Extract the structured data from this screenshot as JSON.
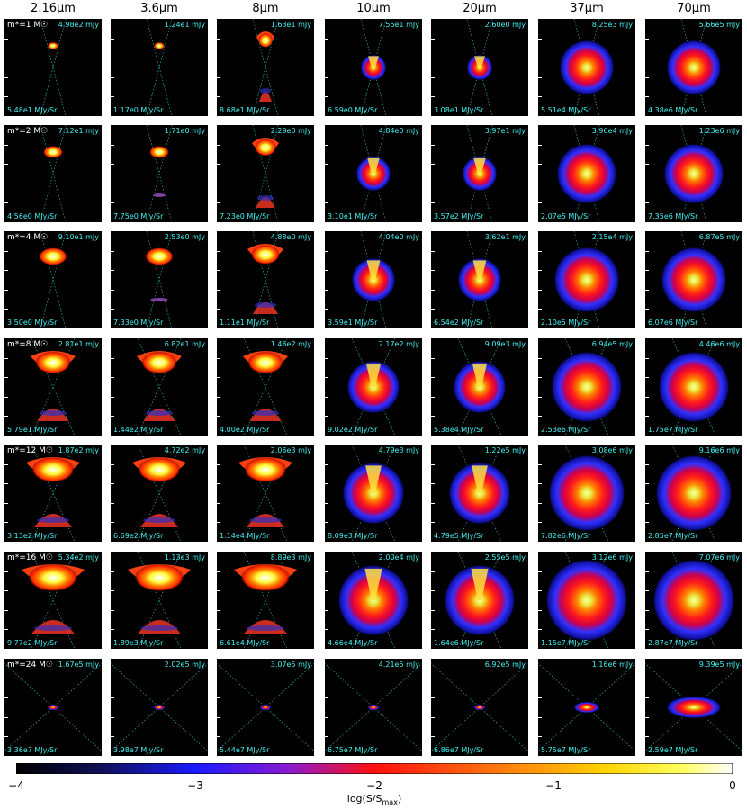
{
  "columns": [
    "2.16μm",
    "3.6μm",
    "8μm",
    "10μm",
    "20μm",
    "37μm",
    "70μm"
  ],
  "rows": [
    {
      "mass": "m*=1 M☉",
      "panels": [
        {
          "flux": "4.98e2 mJy",
          "surf": "5.48e1 MJy/Sr",
          "kind": "dot"
        },
        {
          "flux": "1.24e1 mJy",
          "surf": "1.17e0 MJy/Sr",
          "kind": "dot"
        },
        {
          "flux": "1.63e1 mJy",
          "surf": "8.68e1 MJy/Sr",
          "kind": "bipolar"
        },
        {
          "flux": "7.55e1 mJy",
          "surf": "6.59e0 MJy/Sr",
          "kind": "ring"
        },
        {
          "flux": "2.60e0 mJy",
          "surf": "3.08e1 MJy/Sr",
          "kind": "ring"
        },
        {
          "flux": "8.25e3 mJy",
          "surf": "5.51e4 MJy/Sr",
          "kind": "ring"
        },
        {
          "flux": "5.66e5 mJy",
          "surf": "4.38e6 MJy/Sr",
          "kind": "ring"
        }
      ]
    },
    {
      "mass": "m*=2 M☉",
      "panels": [
        {
          "flux": "7.12e1 mJy",
          "surf": "4.56e0 MJy/Sr",
          "kind": "dot"
        },
        {
          "flux": "1.71e0 mJy",
          "surf": "7.75e0 MJy/Sr",
          "kind": "dot"
        },
        {
          "flux": "2.29e0 mJy",
          "surf": "7.23e0 MJy/Sr",
          "kind": "bipolar"
        },
        {
          "flux": "4.84e0 mJy",
          "surf": "3.10e1 MJy/Sr",
          "kind": "ring"
        },
        {
          "flux": "3.97e1 mJy",
          "surf": "3.57e2 MJy/Sr",
          "kind": "ring"
        },
        {
          "flux": "3.96e4 mJy",
          "surf": "2.07e5 MJy/Sr",
          "kind": "ring"
        },
        {
          "flux": "1.23e6 mJy",
          "surf": "7.35e6 MJy/Sr",
          "kind": "ring"
        }
      ]
    },
    {
      "mass": "m*=4 M☉",
      "panels": [
        {
          "flux": "9.10e1 mJy",
          "surf": "3.50e0 MJy/Sr",
          "kind": "dot"
        },
        {
          "flux": "2.53e0 mJy",
          "surf": "7.33e0 MJy/Sr",
          "kind": "dot"
        },
        {
          "flux": "4.88e0 mJy",
          "surf": "1.11e1 MJy/Sr",
          "kind": "bipolar"
        },
        {
          "flux": "4.04e0 mJy",
          "surf": "3.59e1 MJy/Sr",
          "kind": "ring"
        },
        {
          "flux": "3.62e1 mJy",
          "surf": "6.54e2 MJy/Sr",
          "kind": "ring"
        },
        {
          "flux": "2.15e4 mJy",
          "surf": "2.10e5 MJy/Sr",
          "kind": "ring"
        },
        {
          "flux": "6.87e5 mJy",
          "surf": "6.07e6 MJy/Sr",
          "kind": "ring"
        }
      ]
    },
    {
      "mass": "m*=8 M☉",
      "panels": [
        {
          "flux": "2.81e1 mJy",
          "surf": "5.79e1 MJy/Sr",
          "kind": "bipolar"
        },
        {
          "flux": "6.82e1 mJy",
          "surf": "1.44e2 MJy/Sr",
          "kind": "bipolar"
        },
        {
          "flux": "1.46e2 mJy",
          "surf": "4.00e2 MJy/Sr",
          "kind": "bipolar"
        },
        {
          "flux": "2.17e2 mJy",
          "surf": "9.02e2 MJy/Sr",
          "kind": "ring"
        },
        {
          "flux": "9.09e3 mJy",
          "surf": "5.38e4 MJy/Sr",
          "kind": "ring"
        },
        {
          "flux": "6.94e5 mJy",
          "surf": "2.53e6 MJy/Sr",
          "kind": "ring"
        },
        {
          "flux": "4.46e6 mJy",
          "surf": "1.75e7 MJy/Sr",
          "kind": "ring"
        }
      ]
    },
    {
      "mass": "m*=12 M☉",
      "panels": [
        {
          "flux": "1.87e2 mJy",
          "surf": "3.13e2 MJy/Sr",
          "kind": "bipolar"
        },
        {
          "flux": "4.72e2 mJy",
          "surf": "6.69e2 MJy/Sr",
          "kind": "bipolar"
        },
        {
          "flux": "2.05e3 mJy",
          "surf": "1.14e4 MJy/Sr",
          "kind": "bipolar"
        },
        {
          "flux": "4.79e3 mJy",
          "surf": "8.09e3 MJy/Sr",
          "kind": "ring"
        },
        {
          "flux": "1.22e5 mJy",
          "surf": "4.79e5 MJy/Sr",
          "kind": "ring"
        },
        {
          "flux": "3.08e6 mJy",
          "surf": "7.82e6 MJy/Sr",
          "kind": "ring"
        },
        {
          "flux": "9.16e6 mJy",
          "surf": "2.85e7 MJy/Sr",
          "kind": "ring"
        }
      ]
    },
    {
      "mass": "m*=16 M☉",
      "panels": [
        {
          "flux": "5.34e2 mJy",
          "surf": "9.77e2 MJy/Sr",
          "kind": "bipolar"
        },
        {
          "flux": "1.13e3 mJy",
          "surf": "1.89e3 MJy/Sr",
          "kind": "bipolar"
        },
        {
          "flux": "8.89e3 mJy",
          "surf": "6.61e4 MJy/Sr",
          "kind": "bipolar"
        },
        {
          "flux": "2.00e4 mJy",
          "surf": "4.66e4 MJy/Sr",
          "kind": "ring"
        },
        {
          "flux": "2.55e5 mJy",
          "surf": "1.64e6 MJy/Sr",
          "kind": "ring"
        },
        {
          "flux": "3.12e6 mJy",
          "surf": "1.15e7 MJy/Sr",
          "kind": "ring"
        },
        {
          "flux": "7.07e6 mJy",
          "surf": "2.87e7 MJy/Sr",
          "kind": "ring"
        }
      ]
    },
    {
      "mass": "m*=24 M☉",
      "panels": [
        {
          "flux": "1.67e5 mJy",
          "surf": "3.36e7 MJy/Sr",
          "kind": "tiny"
        },
        {
          "flux": "2.02e5 mJy",
          "surf": "3.98e7 MJy/Sr",
          "kind": "tiny"
        },
        {
          "flux": "3.07e5 mJy",
          "surf": "5.44e7 MJy/Sr",
          "kind": "tiny"
        },
        {
          "flux": "4.21e5 mJy",
          "surf": "6.75e7 MJy/Sr",
          "kind": "tiny"
        },
        {
          "flux": "6.92e5 mJy",
          "surf": "6.86e7 MJy/Sr",
          "kind": "tiny"
        },
        {
          "flux": "1.16e6 mJy",
          "surf": "5.75e7 MJy/Sr",
          "kind": "tiny"
        },
        {
          "flux": "9.39e5 mJy",
          "surf": "2.59e7 MJy/Sr",
          "kind": "tiny"
        }
      ]
    }
  ],
  "colorbar": {
    "ticks": [
      "−4",
      "−3",
      "−2",
      "−1",
      "0"
    ],
    "label": "log(S/Smax)",
    "colors": [
      "#000000",
      "#0000a0",
      "#2020ff",
      "#8000c0",
      "#ff0000",
      "#ff8000",
      "#ffff00",
      "#ffffff"
    ]
  }
}
